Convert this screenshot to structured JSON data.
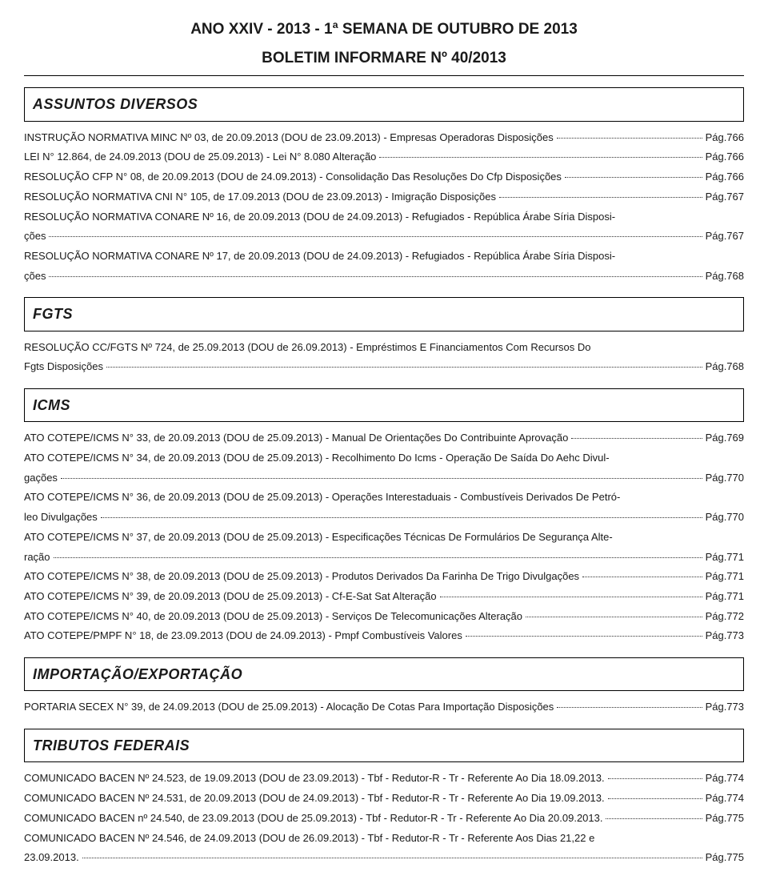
{
  "header": {
    "title": "ANO XXIV - 2013 - 1ª SEMANA DE OUTUBRO DE 2013",
    "subtitle": "BOLETIM INFORMARE Nº 40/2013"
  },
  "sections": [
    {
      "title": "ASSUNTOS DIVERSOS",
      "entries": [
        {
          "text": "INSTRUÇÃO NORMATIVA MINC Nº 03, de 20.09.2013 (DOU de 23.09.2013) - Empresas Operadoras Disposições",
          "page": "Pág.766"
        },
        {
          "text": "LEI N° 12.864, de 24.09.2013 (DOU de 25.09.2013) - Lei N° 8.080 Alteração",
          "page": "Pág.766"
        },
        {
          "text": "RESOLUÇÃO CFP N° 08, de 20.09.2013 (DOU de 24.09.2013) - Consolidação Das Resoluções Do Cfp Disposições",
          "page": "Pág.766"
        },
        {
          "text": "RESOLUÇÃO NORMATIVA CNI N° 105, de 17.09.2013 (DOU de 23.09.2013) - Imigração Disposições",
          "page": "Pág.767"
        },
        {
          "pre": "RESOLUÇÃO NORMATIVA CONARE Nº 16, de 20.09.2013 (DOU de 24.09.2013) - Refugiados - República Árabe Síria Disposi-",
          "text": "ções",
          "page": "Pág.767"
        },
        {
          "pre": "RESOLUÇÃO NORMATIVA CONARE Nº 17, de 20.09.2013 (DOU de 24.09.2013) - Refugiados - República Árabe Síria Disposi-",
          "text": "ções",
          "page": "Pág.768"
        }
      ]
    },
    {
      "title": "FGTS",
      "entries": [
        {
          "pre": "RESOLUÇÃO CC/FGTS Nº 724, de 25.09.2013 (DOU de 26.09.2013) - Empréstimos E Financiamentos Com Recursos Do",
          "text": "Fgts Disposições",
          "page": "Pág.768"
        }
      ]
    },
    {
      "title": "ICMS",
      "entries": [
        {
          "text": "ATO COTEPE/ICMS N° 33, de 20.09.2013 (DOU de 25.09.2013) - Manual De Orientações Do Contribuinte Aprovação",
          "page": "Pág.769"
        },
        {
          "pre": "ATO COTEPE/ICMS N° 34, de 20.09.2013 (DOU de 25.09.2013) - Recolhimento Do Icms - Operação De Saída Do Aehc Divul-",
          "text": "gações",
          "page": "Pág.770"
        },
        {
          "pre": "ATO COTEPE/ICMS N° 36, de 20.09.2013 (DOU de 25.09.2013) - Operações Interestaduais - Combustíveis Derivados De Petró-",
          "text": "leo Divulgações",
          "page": "Pág.770"
        },
        {
          "pre": "ATO COTEPE/ICMS N° 37, de 20.09.2013 (DOU de 25.09.2013) - Especificações Técnicas De Formulários De Segurança Alte-",
          "text": "ração",
          "page": "Pág.771"
        },
        {
          "text": "ATO COTEPE/ICMS N° 38, de 20.09.2013 (DOU de 25.09.2013) - Produtos Derivados Da Farinha De Trigo Divulgações",
          "page": "Pág.771"
        },
        {
          "text": "ATO COTEPE/ICMS N° 39, de 20.09.2013 (DOU de 25.09.2013) - Cf-E-Sat Sat Alteração",
          "page": "Pág.771"
        },
        {
          "text": "ATO COTEPE/ICMS N° 40, de 20.09.2013 (DOU de 25.09.2013) - Serviços De Telecomunicações Alteração",
          "page": "Pág.772"
        },
        {
          "text": "ATO COTEPE/PMPF N° 18, de 23.09.2013 (DOU de 24.09.2013) - Pmpf Combustíveis  Valores",
          "page": "Pág.773"
        }
      ]
    },
    {
      "title": "IMPORTAÇÃO/EXPORTAÇÃO",
      "entries": [
        {
          "text": "PORTARIA SECEX N° 39, de 24.09.2013 (DOU de 25.09.2013) - Alocação De Cotas Para Importação Disposições",
          "page": "Pág.773"
        }
      ]
    },
    {
      "title": "TRIBUTOS FEDERAIS",
      "entries": [
        {
          "text": "COMUNICADO BACEN Nº 24.523, de 19.09.2013 (DOU de 23.09.2013) - Tbf - Redutor-R - Tr - Referente Ao Dia 18.09.2013.",
          "page": "Pág.774"
        },
        {
          "text": "COMUNICADO BACEN Nº 24.531, de 20.09.2013 (DOU de 24.09.2013) - Tbf - Redutor-R - Tr - Referente Ao Dia 19.09.2013.",
          "page": "Pág.774"
        },
        {
          "text": "COMUNICADO BACEN nº 24.540, de 23.09.2013 (DOU de 25.09.2013) - Tbf - Redutor-R - Tr - Referente Ao Dia 20.09.2013.",
          "page": "Pág.775"
        },
        {
          "pre": "COMUNICADO BACEN Nº 24.546, de 24.09.2013 (DOU de 26.09.2013) - Tbf - Redutor-R - Tr - Referente Aos Dias 21,22 e",
          "text": "23.09.2013.",
          "page": "Pág.775"
        }
      ]
    }
  ]
}
